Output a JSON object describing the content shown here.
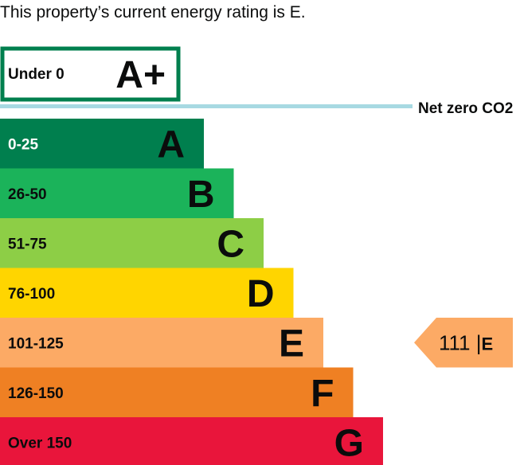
{
  "intro_text": "This property’s current energy rating is E.",
  "chart_data": {
    "type": "bar",
    "title": "",
    "top_band": {
      "label": "Under 0",
      "letter": "A+",
      "color": "#007f4e"
    },
    "net_zero_label": "Net zero CO2",
    "net_zero_color": "#a7d9e2",
    "bands": [
      {
        "range": "0-25",
        "letter": "A",
        "color": "#007f4e",
        "text_color": "#ffffff"
      },
      {
        "range": "26-50",
        "letter": "B",
        "color": "#1bb35a",
        "text_color": "#0b0c0c"
      },
      {
        "range": "51-75",
        "letter": "C",
        "color": "#8dce46",
        "text_color": "#0b0c0c"
      },
      {
        "range": "76-100",
        "letter": "D",
        "color": "#ffd500",
        "text_color": "#0b0c0c"
      },
      {
        "range": "101-125",
        "letter": "E",
        "color": "#fcaa65",
        "text_color": "#0b0c0c"
      },
      {
        "range": "126-150",
        "letter": "F",
        "color": "#ef8023",
        "text_color": "#0b0c0c"
      },
      {
        "range": "Over 150",
        "letter": "G",
        "color": "#e9153b",
        "text_color": "#0b0c0c"
      }
    ],
    "current_rating": {
      "value": 111,
      "letter": "E",
      "color": "#fcaa65",
      "separator": "|"
    }
  }
}
